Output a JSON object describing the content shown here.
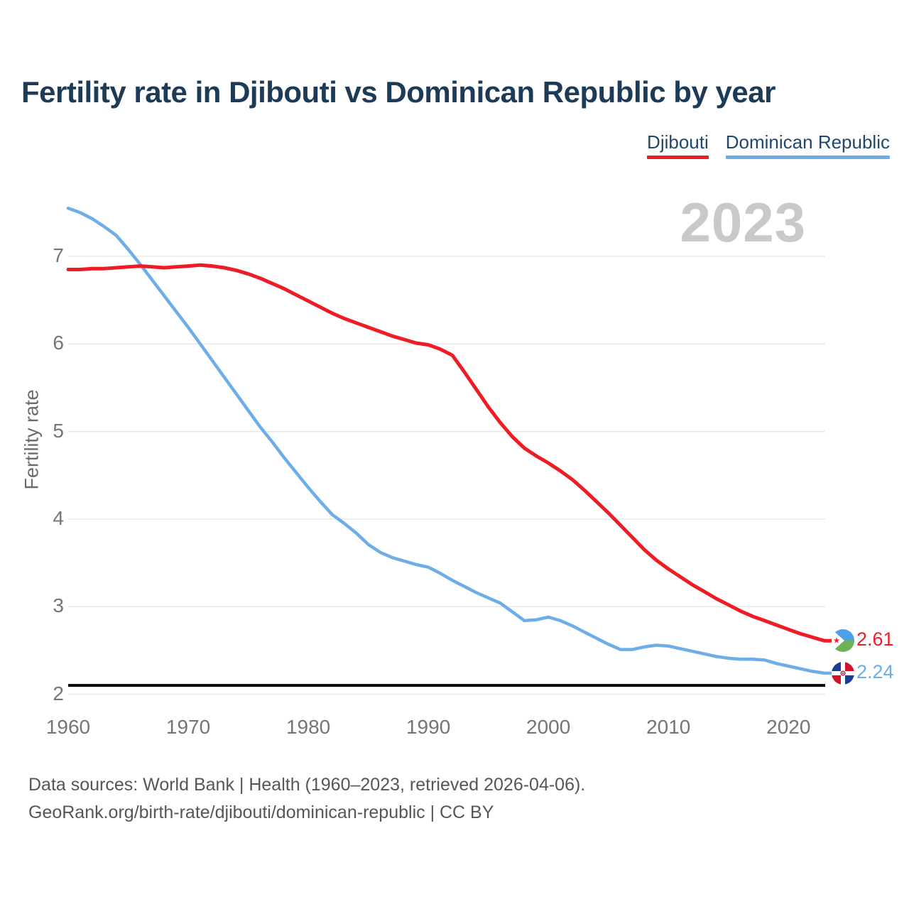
{
  "page": {
    "footer": {
      "line1": "Data sources: World Bank | Health (1960–2023, retrieved 2026-04-06).",
      "line2": "GeoRank.org/birth-rate/djibouti/dominican-republic | CC BY"
    }
  },
  "chart_data": {
    "type": "line",
    "title": "Fertility rate in Djibouti vs Dominican Republic by year",
    "xlabel": "",
    "ylabel": "Fertility rate",
    "watermark": "2023",
    "legend_position": "top-right",
    "grid": "horizontal",
    "ylim": [
      1.9,
      7.7
    ],
    "x_ticks": [
      1960,
      1970,
      1980,
      1990,
      2000,
      2010,
      2020
    ],
    "y_ticks": [
      2,
      3,
      4,
      5,
      6,
      7
    ],
    "reference_line": {
      "y": 2.1,
      "color": "#000000",
      "meaning": "replacement-level fertility"
    },
    "x": [
      1960,
      1961,
      1962,
      1963,
      1964,
      1965,
      1966,
      1967,
      1968,
      1969,
      1970,
      1971,
      1972,
      1973,
      1974,
      1975,
      1976,
      1977,
      1978,
      1979,
      1980,
      1981,
      1982,
      1983,
      1984,
      1985,
      1986,
      1987,
      1988,
      1989,
      1990,
      1991,
      1992,
      1993,
      1994,
      1995,
      1996,
      1997,
      1998,
      1999,
      2000,
      2001,
      2002,
      2003,
      2004,
      2005,
      2006,
      2007,
      2008,
      2009,
      2010,
      2011,
      2012,
      2013,
      2014,
      2015,
      2016,
      2017,
      2018,
      2019,
      2020,
      2021,
      2022,
      2023
    ],
    "series": [
      {
        "name": "Djibouti",
        "color": "#ee1c25",
        "end_label": "2.61",
        "values": [
          6.85,
          6.85,
          6.86,
          6.86,
          6.87,
          6.88,
          6.89,
          6.88,
          6.87,
          6.88,
          6.89,
          6.9,
          6.89,
          6.87,
          6.84,
          6.8,
          6.75,
          6.69,
          6.63,
          6.56,
          6.49,
          6.42,
          6.35,
          6.29,
          6.24,
          6.19,
          6.14,
          6.09,
          6.05,
          6.01,
          5.99,
          5.94,
          5.87,
          5.68,
          5.48,
          5.28,
          5.1,
          4.94,
          4.81,
          4.72,
          4.64,
          4.55,
          4.45,
          4.33,
          4.2,
          4.07,
          3.93,
          3.79,
          3.65,
          3.53,
          3.43,
          3.34,
          3.25,
          3.17,
          3.09,
          3.02,
          2.95,
          2.89,
          2.84,
          2.79,
          2.74,
          2.69,
          2.65,
          2.61
        ]
      },
      {
        "name": "Dominican Republic",
        "color": "#6dade8",
        "end_label": "2.24",
        "values": [
          7.55,
          7.5,
          7.43,
          7.34,
          7.24,
          7.08,
          6.91,
          6.73,
          6.55,
          6.37,
          6.19,
          6.0,
          5.81,
          5.62,
          5.43,
          5.24,
          5.05,
          4.88,
          4.7,
          4.53,
          4.36,
          4.2,
          4.05,
          3.95,
          3.84,
          3.71,
          3.62,
          3.56,
          3.52,
          3.48,
          3.45,
          3.38,
          3.3,
          3.23,
          3.16,
          3.1,
          3.04,
          2.94,
          2.84,
          2.85,
          2.88,
          2.84,
          2.78,
          2.71,
          2.64,
          2.57,
          2.51,
          2.51,
          2.54,
          2.56,
          2.55,
          2.52,
          2.49,
          2.46,
          2.43,
          2.41,
          2.4,
          2.4,
          2.39,
          2.35,
          2.32,
          2.29,
          2.26,
          2.24
        ]
      }
    ]
  }
}
